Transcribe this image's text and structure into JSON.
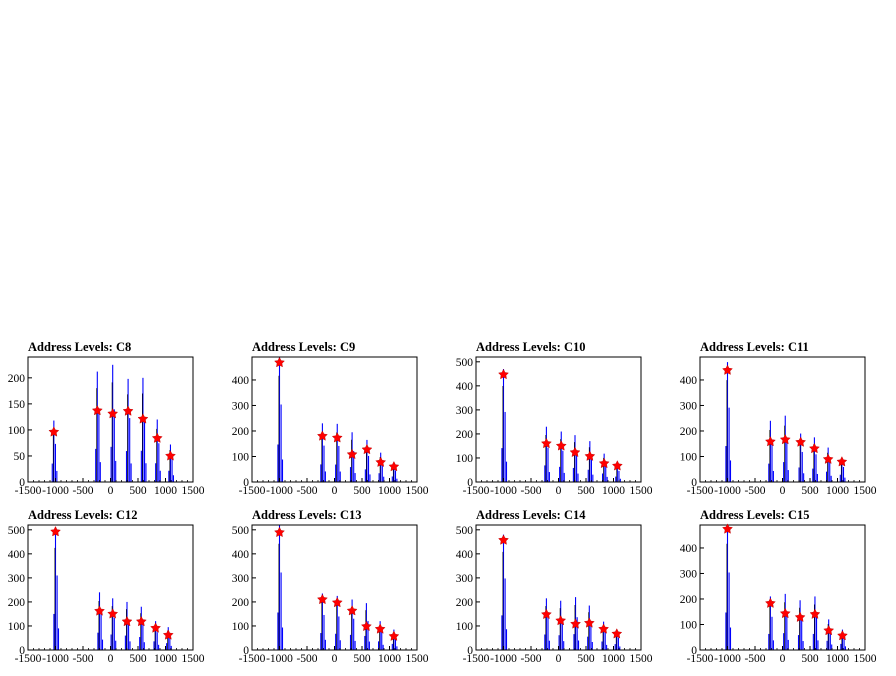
{
  "title_prefix": "Address Levels: ",
  "colors": {
    "histogram": "#0000ff",
    "outline": "#000000",
    "marker": "#ff0000",
    "frame": "#000000"
  },
  "chart_data": [
    {
      "type": "histogram",
      "title": "Address Levels: C8",
      "xlim": [
        -1500,
        1500
      ],
      "ylim": [
        0,
        240
      ],
      "xticks": [
        -1500,
        -1000,
        -500,
        0,
        500,
        1000,
        1500
      ],
      "yticks": [
        0,
        50,
        100,
        150,
        200
      ],
      "peaks": [
        {
          "x": -1030,
          "y": 118
        },
        {
          "x": -240,
          "y": 212
        },
        {
          "x": 40,
          "y": 225
        },
        {
          "x": 320,
          "y": 198
        },
        {
          "x": 590,
          "y": 200
        },
        {
          "x": 850,
          "y": 120
        },
        {
          "x": 1090,
          "y": 72
        }
      ],
      "markers": [
        {
          "x": -1030,
          "y": 96
        },
        {
          "x": -240,
          "y": 137
        },
        {
          "x": 40,
          "y": 131
        },
        {
          "x": 320,
          "y": 136
        },
        {
          "x": 590,
          "y": 121
        },
        {
          "x": 850,
          "y": 84
        },
        {
          "x": 1090,
          "y": 50
        }
      ]
    },
    {
      "type": "histogram",
      "title": "Address Levels: C9",
      "xlim": [
        -1500,
        1500
      ],
      "ylim": [
        0,
        490
      ],
      "xticks": [
        -1500,
        -1000,
        -500,
        0,
        500,
        1000,
        1500
      ],
      "yticks": [
        0,
        100,
        200,
        300,
        400
      ],
      "peaks": [
        {
          "x": -1000,
          "y": 490
        },
        {
          "x": -220,
          "y": 230
        },
        {
          "x": 50,
          "y": 228
        },
        {
          "x": 320,
          "y": 195
        },
        {
          "x": 590,
          "y": 165
        },
        {
          "x": 840,
          "y": 115
        },
        {
          "x": 1080,
          "y": 72
        }
      ],
      "markers": [
        {
          "x": -1000,
          "y": 468
        },
        {
          "x": -220,
          "y": 180
        },
        {
          "x": 50,
          "y": 173
        },
        {
          "x": 320,
          "y": 108
        },
        {
          "x": 590,
          "y": 127
        },
        {
          "x": 840,
          "y": 77
        },
        {
          "x": 1080,
          "y": 60
        }
      ]
    },
    {
      "type": "histogram",
      "title": "Address Levels: C10",
      "xlim": [
        -1500,
        1500
      ],
      "ylim": [
        0,
        520
      ],
      "xticks": [
        -1500,
        -1000,
        -500,
        0,
        500,
        1000,
        1500
      ],
      "yticks": [
        0,
        100,
        200,
        300,
        400,
        500
      ],
      "peaks": [
        {
          "x": -1000,
          "y": 470
        },
        {
          "x": -220,
          "y": 230
        },
        {
          "x": 50,
          "y": 210
        },
        {
          "x": 300,
          "y": 195
        },
        {
          "x": 570,
          "y": 170
        },
        {
          "x": 830,
          "y": 118
        },
        {
          "x": 1070,
          "y": 75
        }
      ],
      "markers": [
        {
          "x": -1000,
          "y": 447
        },
        {
          "x": -220,
          "y": 160
        },
        {
          "x": 50,
          "y": 150
        },
        {
          "x": 300,
          "y": 123
        },
        {
          "x": 570,
          "y": 107
        },
        {
          "x": 830,
          "y": 77
        },
        {
          "x": 1070,
          "y": 67
        }
      ]
    },
    {
      "type": "histogram",
      "title": "Address Levels: C11",
      "xlim": [
        -1500,
        1500
      ],
      "ylim": [
        0,
        490
      ],
      "xticks": [
        -1500,
        -1000,
        -500,
        0,
        500,
        1000,
        1500
      ],
      "yticks": [
        0,
        100,
        200,
        300,
        400
      ],
      "peaks": [
        {
          "x": -1000,
          "y": 470
        },
        {
          "x": -220,
          "y": 240
        },
        {
          "x": 50,
          "y": 260
        },
        {
          "x": 330,
          "y": 190
        },
        {
          "x": 580,
          "y": 175
        },
        {
          "x": 830,
          "y": 135
        },
        {
          "x": 1080,
          "y": 95
        }
      ],
      "markers": [
        {
          "x": -1000,
          "y": 438
        },
        {
          "x": -220,
          "y": 158
        },
        {
          "x": 50,
          "y": 166
        },
        {
          "x": 330,
          "y": 156
        },
        {
          "x": 580,
          "y": 131
        },
        {
          "x": 830,
          "y": 89
        },
        {
          "x": 1080,
          "y": 79
        }
      ]
    },
    {
      "type": "histogram",
      "title": "Address Levels: C12",
      "xlim": [
        -1500,
        1500
      ],
      "ylim": [
        0,
        520
      ],
      "xticks": [
        -1500,
        -1000,
        -500,
        0,
        500,
        1000,
        1500
      ],
      "yticks": [
        0,
        100,
        200,
        300,
        400,
        500
      ],
      "peaks": [
        {
          "x": -1000,
          "y": 500
        },
        {
          "x": -200,
          "y": 240
        },
        {
          "x": 40,
          "y": 215
        },
        {
          "x": 300,
          "y": 200
        },
        {
          "x": 560,
          "y": 180
        },
        {
          "x": 820,
          "y": 120
        },
        {
          "x": 1050,
          "y": 95
        }
      ],
      "markers": [
        {
          "x": -1000,
          "y": 492
        },
        {
          "x": -200,
          "y": 162
        },
        {
          "x": 40,
          "y": 150
        },
        {
          "x": 300,
          "y": 118
        },
        {
          "x": 560,
          "y": 118
        },
        {
          "x": 820,
          "y": 91
        },
        {
          "x": 1050,
          "y": 62
        }
      ]
    },
    {
      "type": "histogram",
      "title": "Address Levels: C13",
      "xlim": [
        -1500,
        1500
      ],
      "ylim": [
        0,
        520
      ],
      "xticks": [
        -1500,
        -1000,
        -500,
        0,
        500,
        1000,
        1500
      ],
      "yticks": [
        0,
        100,
        200,
        300,
        400,
        500
      ],
      "peaks": [
        {
          "x": -1000,
          "y": 520
        },
        {
          "x": -220,
          "y": 235
        },
        {
          "x": 50,
          "y": 225
        },
        {
          "x": 320,
          "y": 210
        },
        {
          "x": 580,
          "y": 195
        },
        {
          "x": 830,
          "y": 120
        },
        {
          "x": 1080,
          "y": 85
        }
      ],
      "markers": [
        {
          "x": -1000,
          "y": 489
        },
        {
          "x": -220,
          "y": 210
        },
        {
          "x": 50,
          "y": 197
        },
        {
          "x": 320,
          "y": 163
        },
        {
          "x": 580,
          "y": 98
        },
        {
          "x": 830,
          "y": 87
        },
        {
          "x": 1080,
          "y": 57
        }
      ]
    },
    {
      "type": "histogram",
      "title": "Address Levels: C14",
      "xlim": [
        -1500,
        1500
      ],
      "ylim": [
        0,
        520
      ],
      "xticks": [
        -1500,
        -1000,
        -500,
        0,
        500,
        1000,
        1500
      ],
      "yticks": [
        0,
        100,
        200,
        300,
        400,
        500
      ],
      "peaks": [
        {
          "x": -1000,
          "y": 480
        },
        {
          "x": -220,
          "y": 215
        },
        {
          "x": 40,
          "y": 205
        },
        {
          "x": 310,
          "y": 220
        },
        {
          "x": 560,
          "y": 185
        },
        {
          "x": 820,
          "y": 118
        },
        {
          "x": 1060,
          "y": 82
        }
      ],
      "markers": [
        {
          "x": -1000,
          "y": 457
        },
        {
          "x": -220,
          "y": 148
        },
        {
          "x": 40,
          "y": 122
        },
        {
          "x": 310,
          "y": 108
        },
        {
          "x": 560,
          "y": 112
        },
        {
          "x": 820,
          "y": 87
        },
        {
          "x": 1060,
          "y": 67
        }
      ]
    },
    {
      "type": "histogram",
      "title": "Address Levels: C15",
      "xlim": [
        -1500,
        1500
      ],
      "ylim": [
        0,
        490
      ],
      "xticks": [
        -1500,
        -1000,
        -500,
        0,
        500,
        1000,
        1500
      ],
      "yticks": [
        0,
        100,
        200,
        300,
        400
      ],
      "peaks": [
        {
          "x": -1000,
          "y": 490
        },
        {
          "x": -220,
          "y": 210
        },
        {
          "x": 50,
          "y": 220
        },
        {
          "x": 320,
          "y": 195
        },
        {
          "x": 590,
          "y": 210
        },
        {
          "x": 840,
          "y": 120
        },
        {
          "x": 1090,
          "y": 80
        }
      ],
      "markers": [
        {
          "x": -1000,
          "y": 474
        },
        {
          "x": -220,
          "y": 183
        },
        {
          "x": 50,
          "y": 143
        },
        {
          "x": 320,
          "y": 128
        },
        {
          "x": 590,
          "y": 140
        },
        {
          "x": 840,
          "y": 76
        },
        {
          "x": 1090,
          "y": 56
        }
      ]
    }
  ]
}
